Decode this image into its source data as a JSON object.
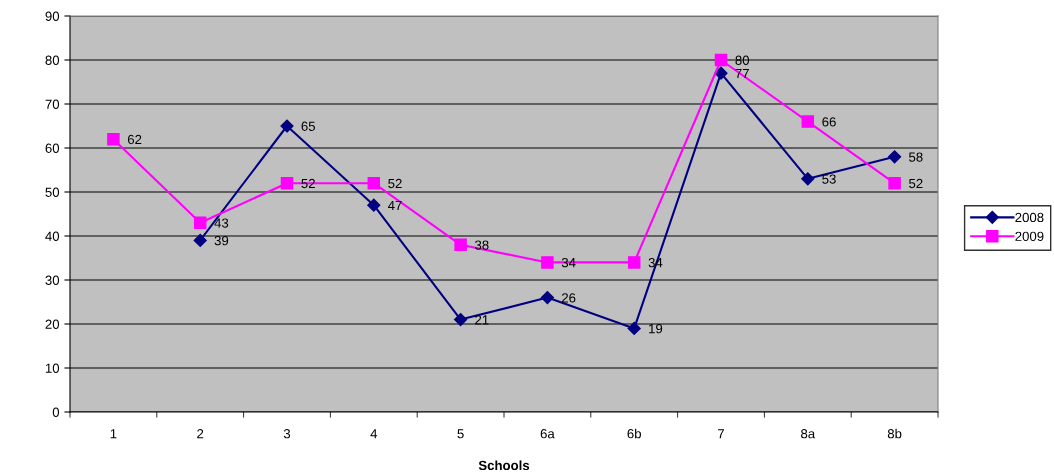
{
  "chart_data": {
    "type": "line",
    "xlabel": "Schools",
    "categories": [
      "1",
      "2",
      "3",
      "4",
      "5",
      "6a",
      "6b",
      "7",
      "8a",
      "8b"
    ],
    "series": [
      {
        "name": "2008",
        "color": "#000080",
        "marker": "diamond",
        "values": [
          null,
          39,
          65,
          47,
          21,
          26,
          19,
          77,
          53,
          58
        ]
      },
      {
        "name": "2009",
        "color": "#ff00ff",
        "marker": "square",
        "values": [
          62,
          43,
          52,
          52,
          38,
          34,
          34,
          80,
          66,
          52
        ]
      }
    ],
    "ylim": [
      0,
      90
    ],
    "yticks": [
      0,
      10,
      20,
      30,
      40,
      50,
      60,
      70,
      80,
      90
    ],
    "grid": "y",
    "legend": "right",
    "line_style": "solid",
    "data_labels": true
  }
}
